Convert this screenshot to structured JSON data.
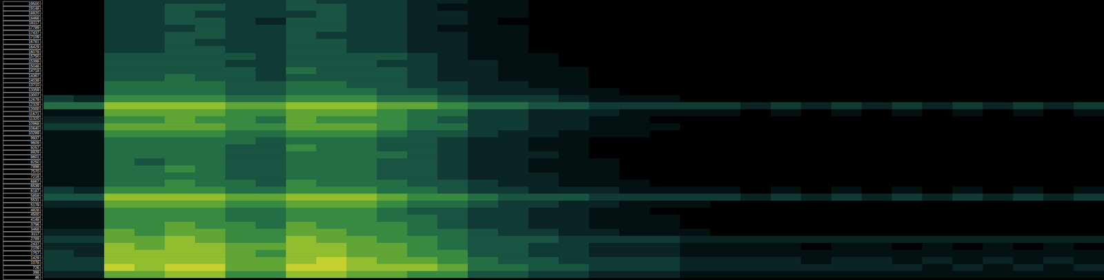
{
  "chart_data": {
    "type": "heatmap",
    "tick_labels": "y",
    "ylim": [
      -150,
      19750
    ],
    "yticks": [
      19500,
      19148,
      18820,
      18468,
      18117,
      17789,
      17437,
      17109,
      16781,
      16429,
      16078,
      15750,
      15398,
      15046,
      14718,
      14367,
      14039,
      13710,
      13359,
      13007,
      12679,
      12328,
      12000,
      11671,
      11320,
      10968,
      10640,
      10289,
      9937,
      9609,
      9257,
      8929,
      8601,
      8250,
      7898,
      7570,
      7218,
      6867,
      6539,
      6187,
      5859,
      5531,
      5179,
      4828,
      4500,
      4148,
      3796,
      3468,
      3117,
      2789,
      2437,
      2109,
      1757,
      1429,
      1078,
      726,
      398,
      46
    ],
    "ybins": [
      0,
      500,
      1000,
      1500,
      2000,
      2500,
      3000,
      3500,
      4000,
      4500,
      5000,
      5500,
      6000,
      6500,
      7000,
      7500,
      8000,
      8500,
      9000,
      9500,
      10000,
      10500,
      11000,
      11500,
      12000,
      12500,
      13000,
      13500,
      14000,
      14500,
      15000,
      15500,
      16000,
      16500,
      17000,
      17500,
      18000,
      18500,
      19000,
      19500,
      20000
    ],
    "cells": [
      [
        2,
        2,
        7,
        7,
        8,
        8,
        6,
        6,
        8,
        8,
        7,
        7,
        6,
        6,
        4,
        4,
        3,
        3,
        2,
        2,
        2,
        1,
        1,
        1,
        1,
        1,
        1,
        1,
        1,
        1,
        1,
        1,
        1,
        1,
        1
      ],
      [
        3,
        3,
        9,
        8,
        9,
        9,
        7,
        7,
        9,
        9,
        8,
        8,
        8,
        7,
        5,
        5,
        4,
        4,
        3,
        3,
        3,
        2,
        2,
        2,
        2,
        2,
        2,
        2,
        2,
        1,
        2,
        1,
        2,
        1,
        2
      ],
      [
        3,
        3,
        8,
        8,
        8,
        8,
        7,
        7,
        8,
        9,
        8,
        7,
        7,
        6,
        5,
        4,
        4,
        3,
        3,
        3,
        3,
        2,
        2,
        2,
        2,
        1,
        2,
        2,
        1,
        2,
        1,
        2,
        1,
        2,
        1
      ],
      [
        3,
        2,
        8,
        8,
        8,
        8,
        7,
        6,
        8,
        8,
        7,
        7,
        6,
        6,
        4,
        4,
        3,
        3,
        2,
        2,
        2,
        1,
        1,
        1,
        1,
        1,
        1,
        1,
        1,
        1,
        1,
        1,
        1,
        1,
        1
      ],
      [
        2,
        2,
        8,
        7,
        8,
        8,
        7,
        7,
        8,
        8,
        7,
        7,
        6,
        5,
        4,
        4,
        3,
        3,
        2,
        2,
        2,
        1,
        1,
        1,
        1,
        0,
        1,
        1,
        0,
        1,
        0,
        1,
        0,
        1,
        0
      ],
      [
        3,
        3,
        7,
        7,
        8,
        7,
        6,
        6,
        8,
        7,
        7,
        6,
        6,
        5,
        4,
        4,
        4,
        3,
        3,
        3,
        3,
        2,
        2,
        2,
        2,
        2,
        2,
        2,
        2,
        2,
        2,
        2,
        2,
        2,
        2
      ],
      [
        2,
        2,
        7,
        6,
        7,
        7,
        6,
        6,
        7,
        7,
        6,
        6,
        5,
        5,
        4,
        3,
        3,
        2,
        2,
        1,
        1,
        1,
        0,
        0,
        0,
        0,
        0,
        0,
        0,
        0,
        0,
        0,
        0,
        0,
        0
      ],
      [
        1,
        1,
        6,
        6,
        7,
        6,
        6,
        5,
        7,
        6,
        6,
        6,
        5,
        4,
        3,
        3,
        2,
        2,
        1,
        1,
        1,
        0,
        0,
        0,
        0,
        0,
        0,
        0,
        0,
        0,
        0,
        0,
        0,
        0,
        0
      ],
      [
        1,
        1,
        6,
        6,
        6,
        6,
        5,
        5,
        6,
        6,
        6,
        5,
        5,
        4,
        3,
        3,
        2,
        2,
        1,
        1,
        1,
        0,
        0,
        0,
        0,
        0,
        0,
        0,
        0,
        0,
        0,
        0,
        0,
        0,
        0
      ],
      [
        1,
        1,
        6,
        6,
        6,
        6,
        5,
        5,
        6,
        6,
        6,
        5,
        4,
        4,
        3,
        3,
        2,
        2,
        1,
        1,
        0,
        0,
        0,
        0,
        0,
        0,
        0,
        0,
        0,
        0,
        0,
        0,
        0,
        0,
        0
      ],
      [
        2,
        2,
        7,
        7,
        7,
        7,
        6,
        6,
        7,
        7,
        7,
        6,
        5,
        5,
        4,
        3,
        3,
        2,
        2,
        1,
        1,
        1,
        0,
        0,
        0,
        0,
        0,
        0,
        0,
        0,
        0,
        0,
        0,
        0,
        0
      ],
      [
        4,
        4,
        8,
        8,
        8,
        8,
        7,
        7,
        8,
        8,
        8,
        7,
        6,
        6,
        5,
        4,
        4,
        4,
        3,
        3,
        3,
        3,
        3,
        2,
        3,
        2,
        3,
        2,
        3,
        2,
        3,
        2,
        3,
        2,
        3
      ],
      [
        3,
        2,
        6,
        6,
        6,
        6,
        5,
        5,
        6,
        6,
        6,
        5,
        5,
        4,
        3,
        3,
        2,
        2,
        2,
        1,
        1,
        1,
        1,
        0,
        1,
        0,
        1,
        0,
        1,
        0,
        1,
        0,
        1,
        0,
        1
      ],
      [
        1,
        1,
        5,
        5,
        6,
        5,
        5,
        4,
        6,
        5,
        5,
        5,
        4,
        4,
        3,
        2,
        2,
        1,
        1,
        1,
        0,
        0,
        0,
        0,
        0,
        0,
        0,
        0,
        0,
        0,
        0,
        0,
        0,
        0,
        0
      ],
      [
        1,
        1,
        5,
        5,
        5,
        5,
        4,
        4,
        5,
        5,
        5,
        4,
        4,
        3,
        2,
        2,
        2,
        1,
        1,
        0,
        0,
        0,
        0,
        0,
        0,
        0,
        0,
        0,
        0,
        0,
        0,
        0,
        0,
        0,
        0
      ],
      [
        1,
        1,
        5,
        5,
        6,
        5,
        4,
        4,
        5,
        5,
        5,
        4,
        4,
        3,
        2,
        2,
        1,
        1,
        1,
        0,
        0,
        0,
        0,
        0,
        0,
        0,
        0,
        0,
        0,
        0,
        0,
        0,
        0,
        0,
        0
      ],
      [
        1,
        1,
        5,
        4,
        5,
        5,
        4,
        4,
        5,
        5,
        5,
        4,
        4,
        3,
        2,
        2,
        1,
        1,
        1,
        0,
        0,
        0,
        0,
        0,
        0,
        0,
        0,
        0,
        0,
        0,
        0,
        0,
        0,
        0,
        0
      ],
      [
        1,
        1,
        5,
        5,
        5,
        5,
        4,
        4,
        5,
        5,
        5,
        5,
        4,
        3,
        2,
        2,
        2,
        1,
        0,
        0,
        0,
        0,
        0,
        0,
        0,
        0,
        0,
        0,
        0,
        0,
        0,
        0,
        0,
        0,
        0
      ],
      [
        1,
        1,
        5,
        5,
        5,
        5,
        4,
        4,
        6,
        5,
        5,
        4,
        4,
        3,
        2,
        2,
        1,
        1,
        0,
        0,
        0,
        0,
        0,
        0,
        0,
        0,
        0,
        0,
        0,
        0,
        0,
        0,
        0,
        0,
        0
      ],
      [
        1,
        1,
        5,
        5,
        5,
        5,
        5,
        4,
        5,
        5,
        5,
        4,
        4,
        3,
        2,
        2,
        1,
        1,
        0,
        0,
        0,
        0,
        0,
        0,
        0,
        0,
        0,
        0,
        0,
        0,
        0,
        0,
        0,
        0,
        0
      ],
      [
        1,
        1,
        6,
        6,
        6,
        6,
        5,
        5,
        6,
        6,
        6,
        5,
        4,
        4,
        3,
        2,
        2,
        1,
        1,
        1,
        0,
        0,
        0,
        0,
        0,
        0,
        0,
        0,
        0,
        0,
        0,
        0,
        0,
        0,
        0
      ],
      [
        3,
        3,
        7,
        7,
        7,
        7,
        6,
        6,
        7,
        7,
        7,
        6,
        5,
        5,
        3,
        3,
        2,
        2,
        1,
        1,
        1,
        0,
        0,
        0,
        0,
        0,
        0,
        0,
        0,
        0,
        0,
        0,
        0,
        0,
        0
      ],
      [
        2,
        2,
        6,
        6,
        7,
        6,
        6,
        5,
        7,
        6,
        6,
        6,
        5,
        4,
        3,
        3,
        2,
        2,
        1,
        1,
        0,
        0,
        0,
        0,
        0,
        0,
        0,
        0,
        0,
        0,
        0,
        0,
        0,
        0,
        0
      ],
      [
        1,
        1,
        7,
        7,
        7,
        7,
        6,
        6,
        7,
        7,
        7,
        6,
        5,
        5,
        3,
        3,
        2,
        2,
        2,
        1,
        1,
        1,
        1,
        0,
        1,
        0,
        1,
        0,
        1,
        0,
        1,
        0,
        1,
        0,
        1
      ],
      [
        5,
        5,
        8,
        8,
        8,
        8,
        7,
        7,
        8,
        8,
        8,
        7,
        7,
        6,
        5,
        5,
        4,
        4,
        3,
        3,
        3,
        3,
        3,
        2,
        3,
        2,
        3,
        2,
        3,
        2,
        3,
        2,
        3,
        2,
        3
      ],
      [
        3,
        2,
        6,
        6,
        6,
        6,
        5,
        5,
        6,
        6,
        6,
        5,
        5,
        4,
        3,
        3,
        3,
        2,
        1,
        1,
        1,
        0,
        0,
        0,
        0,
        0,
        0,
        0,
        0,
        0,
        0,
        0,
        0,
        0,
        0
      ],
      [
        0,
        0,
        5,
        5,
        5,
        5,
        4,
        4,
        5,
        5,
        5,
        4,
        4,
        3,
        2,
        2,
        2,
        1,
        1,
        0,
        0,
        0,
        0,
        0,
        0,
        0,
        0,
        0,
        0,
        0,
        0,
        0,
        0,
        0,
        0
      ],
      [
        0,
        0,
        5,
        5,
        5,
        5,
        4,
        4,
        5,
        5,
        4,
        4,
        3,
        3,
        2,
        2,
        1,
        1,
        0,
        0,
        0,
        0,
        0,
        0,
        0,
        0,
        0,
        0,
        0,
        0,
        0,
        0,
        0,
        0,
        0
      ],
      [
        0,
        0,
        4,
        4,
        5,
        4,
        4,
        3,
        4,
        4,
        4,
        4,
        3,
        2,
        2,
        1,
        1,
        1,
        0,
        0,
        0,
        0,
        0,
        0,
        0,
        0,
        0,
        0,
        0,
        0,
        0,
        0,
        0,
        0,
        0
      ],
      [
        0,
        0,
        4,
        4,
        4,
        4,
        4,
        3,
        5,
        4,
        4,
        4,
        3,
        2,
        2,
        1,
        1,
        1,
        0,
        0,
        0,
        0,
        0,
        0,
        0,
        0,
        0,
        0,
        0,
        0,
        0,
        0,
        0,
        0,
        0
      ],
      [
        0,
        0,
        4,
        4,
        4,
        4,
        3,
        3,
        4,
        4,
        4,
        3,
        3,
        2,
        2,
        1,
        1,
        0,
        0,
        0,
        0,
        0,
        0,
        0,
        0,
        0,
        0,
        0,
        0,
        0,
        0,
        0,
        0,
        0,
        0
      ],
      [
        0,
        0,
        4,
        4,
        4,
        4,
        4,
        3,
        4,
        4,
        4,
        4,
        3,
        2,
        1,
        1,
        1,
        0,
        0,
        0,
        0,
        0,
        0,
        0,
        0,
        0,
        0,
        0,
        0,
        0,
        0,
        0,
        0,
        0,
        0
      ],
      [
        0,
        0,
        3,
        3,
        4,
        4,
        3,
        3,
        4,
        4,
        3,
        3,
        2,
        2,
        1,
        1,
        0,
        0,
        0,
        0,
        0,
        0,
        0,
        0,
        0,
        0,
        0,
        0,
        0,
        0,
        0,
        0,
        0,
        0,
        0
      ],
      [
        0,
        0,
        3,
        3,
        4,
        3,
        3,
        3,
        4,
        4,
        3,
        3,
        2,
        2,
        1,
        1,
        0,
        0,
        0,
        0,
        0,
        0,
        0,
        0,
        0,
        0,
        0,
        0,
        0,
        0,
        0,
        0,
        0,
        0,
        0
      ],
      [
        0,
        0,
        3,
        3,
        4,
        4,
        3,
        3,
        4,
        3,
        3,
        3,
        2,
        2,
        1,
        1,
        0,
        0,
        0,
        0,
        0,
        0,
        0,
        0,
        0,
        0,
        0,
        0,
        0,
        0,
        0,
        0,
        0,
        0,
        0
      ],
      [
        0,
        0,
        3,
        3,
        3,
        4,
        3,
        3,
        4,
        4,
        3,
        3,
        2,
        1,
        1,
        1,
        0,
        0,
        0,
        0,
        0,
        0,
        0,
        0,
        0,
        0,
        0,
        0,
        0,
        0,
        0,
        0,
        0,
        0,
        0
      ],
      [
        0,
        0,
        3,
        3,
        4,
        4,
        3,
        2,
        4,
        4,
        3,
        3,
        2,
        2,
        1,
        0,
        0,
        0,
        0,
        0,
        0,
        0,
        0,
        0,
        0,
        0,
        0,
        0,
        0,
        0,
        0,
        0,
        0,
        0,
        0
      ],
      [
        0,
        0,
        3,
        3,
        4,
        3,
        3,
        3,
        3,
        4,
        3,
        3,
        2,
        2,
        1,
        1,
        0,
        0,
        0,
        0,
        0,
        0,
        0,
        0,
        0,
        0,
        0,
        0,
        0,
        0,
        0,
        0,
        0,
        0,
        0
      ],
      [
        0,
        0,
        3,
        3,
        4,
        4,
        3,
        3,
        4,
        4,
        3,
        3,
        2,
        1,
        1,
        1,
        0,
        0,
        0,
        0,
        0,
        0,
        0,
        0,
        0,
        0,
        0,
        0,
        0,
        0,
        0,
        0,
        0,
        0,
        0
      ],
      [
        0,
        0,
        3,
        3,
        3,
        3,
        3,
        3,
        4,
        3,
        3,
        3,
        2,
        2,
        1,
        1,
        0,
        0,
        0,
        0,
        0,
        0,
        0,
        0,
        0,
        0,
        0,
        0,
        0,
        0,
        0,
        0,
        0,
        0,
        0
      ]
    ]
  }
}
